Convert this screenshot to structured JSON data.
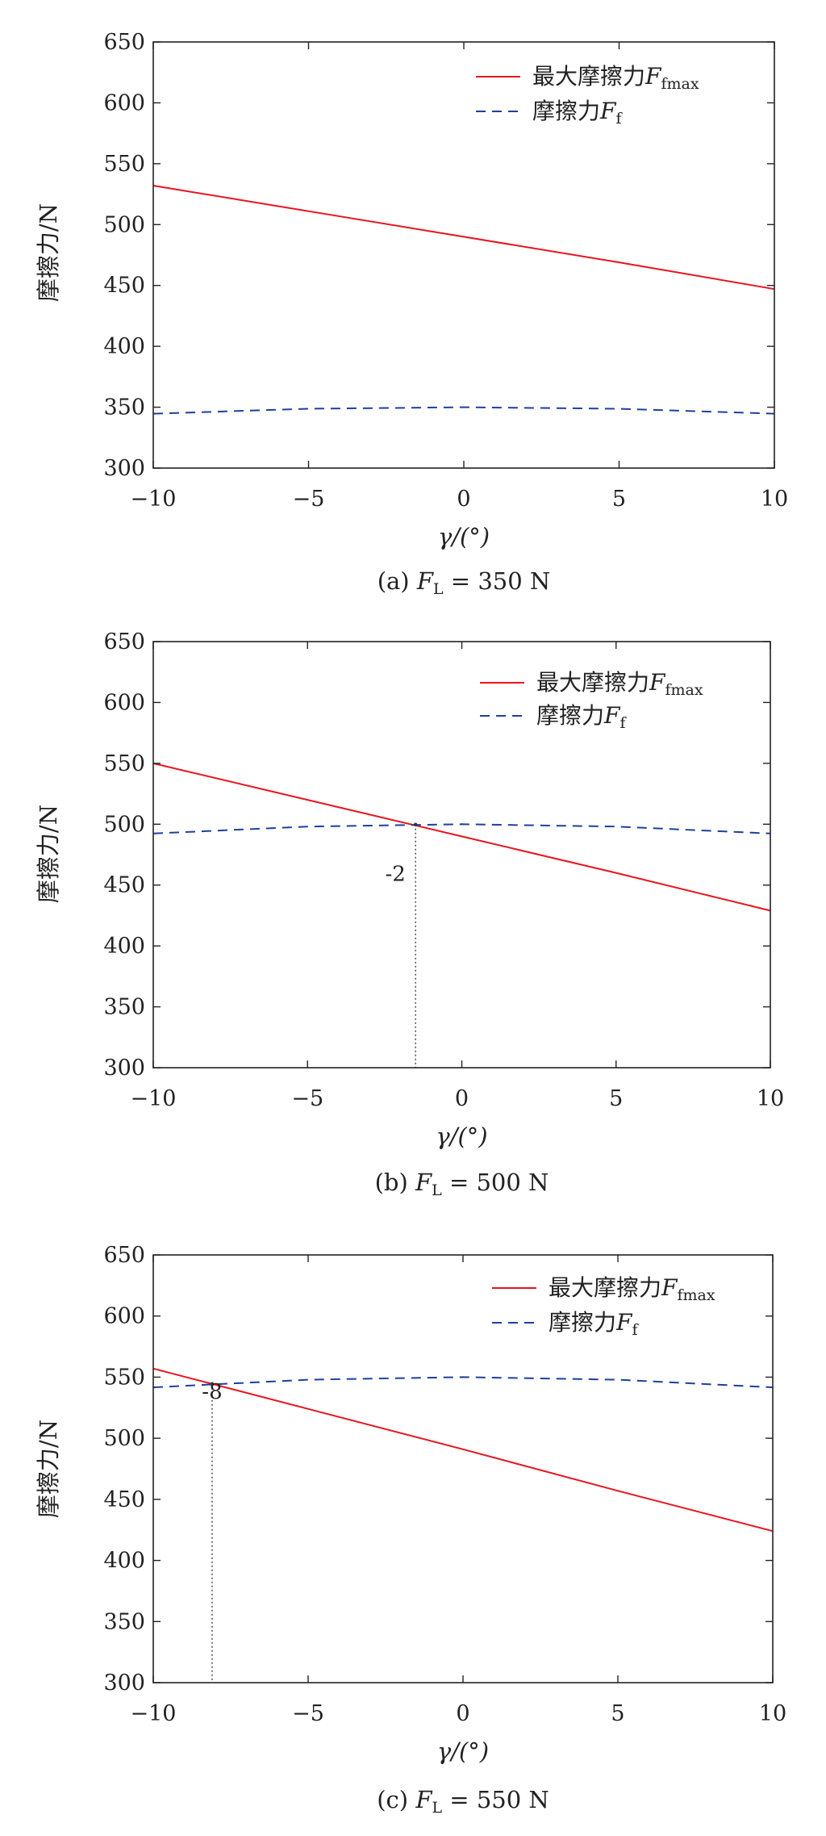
{
  "colors": {
    "max_friction": "#e8141e",
    "friction": "#1f3f9e",
    "axis": "#222222"
  },
  "chart_data": [
    {
      "type": "line",
      "xlabel": "γ/(°)",
      "ylabel": "摩擦力/N",
      "xlim": [
        -10,
        10
      ],
      "ylim": [
        300,
        650
      ],
      "xticks": [
        -10,
        -5,
        0,
        5,
        10
      ],
      "yticks": [
        300,
        350,
        400,
        450,
        500,
        550,
        600,
        650
      ],
      "xtick_labels": [
        "−10",
        "−5",
        "0",
        "5",
        "10"
      ],
      "ytick_labels": [
        "300",
        "350",
        "400",
        "450",
        "500",
        "550",
        "600",
        "650"
      ],
      "legend_position": "top-right",
      "series": [
        {
          "name": "最大摩擦力",
          "name_sub": "fmax",
          "style": "solid",
          "x": [
            -10,
            -5,
            0,
            5,
            10
          ],
          "values": [
            532,
            511,
            490,
            469,
            447
          ]
        },
        {
          "name": "摩擦力",
          "name_sub": "f",
          "style": "dashed",
          "x": [
            -10,
            -5,
            0,
            5,
            10
          ],
          "values": [
            344.7,
            348.7,
            350,
            348.7,
            344.7
          ]
        }
      ],
      "caption": {
        "prefix": "(a) ",
        "sub": "L",
        "suffix": " = 350 N"
      }
    },
    {
      "type": "line",
      "xlabel": "γ/(°)",
      "ylabel": "摩擦力/N",
      "xlim": [
        -10,
        10
      ],
      "ylim": [
        300,
        650
      ],
      "xticks": [
        -10,
        -5,
        0,
        5,
        10
      ],
      "yticks": [
        300,
        350,
        400,
        450,
        500,
        550,
        600,
        650
      ],
      "xtick_labels": [
        "−10",
        "−5",
        "0",
        "5",
        "10"
      ],
      "ytick_labels": [
        "300",
        "350",
        "400",
        "450",
        "500",
        "550",
        "600",
        "650"
      ],
      "legend_position": "top-right",
      "series": [
        {
          "name": "最大摩擦力",
          "name_sub": "fmax",
          "style": "solid",
          "x": [
            -10,
            -5,
            0,
            5,
            10
          ],
          "values": [
            550,
            520,
            490,
            460,
            429
          ]
        },
        {
          "name": "摩擦力",
          "name_sub": "f",
          "style": "dashed",
          "x": [
            -10,
            -5,
            0,
            5,
            10
          ],
          "values": [
            492.4,
            498.1,
            500,
            498.1,
            492.4
          ]
        }
      ],
      "marker": {
        "x": -1.5,
        "y": 499.7,
        "label": "-2"
      },
      "caption": {
        "prefix": "(b) ",
        "sub": "L",
        "suffix": " = 500 N"
      }
    },
    {
      "type": "line",
      "xlabel": "γ/(°)",
      "ylabel": "摩擦力/N",
      "xlim": [
        -10,
        10
      ],
      "ylim": [
        300,
        650
      ],
      "xticks": [
        -10,
        -5,
        0,
        5,
        10
      ],
      "yticks": [
        300,
        350,
        400,
        450,
        500,
        550,
        600,
        650
      ],
      "xtick_labels": [
        "−10",
        "−5",
        "0",
        "5",
        "10"
      ],
      "ytick_labels": [
        "300",
        "350",
        "400",
        "450",
        "500",
        "550",
        "600",
        "650"
      ],
      "legend_position": "top-right",
      "series": [
        {
          "name": "最大摩擦力",
          "name_sub": "fmax",
          "style": "solid",
          "x": [
            -10,
            -5,
            0,
            5,
            10
          ],
          "values": [
            557,
            524,
            491,
            457,
            424
          ]
        },
        {
          "name": "摩擦力",
          "name_sub": "f",
          "style": "dashed",
          "x": [
            -10,
            -5,
            0,
            5,
            10
          ],
          "values": [
            541.6,
            547.9,
            550,
            547.9,
            541.6
          ]
        }
      ],
      "marker": {
        "x": -8.1,
        "y": 544.5,
        "label": "-8"
      },
      "caption": {
        "prefix": "(c) ",
        "sub": "L",
        "suffix": " = 550 N"
      }
    }
  ]
}
